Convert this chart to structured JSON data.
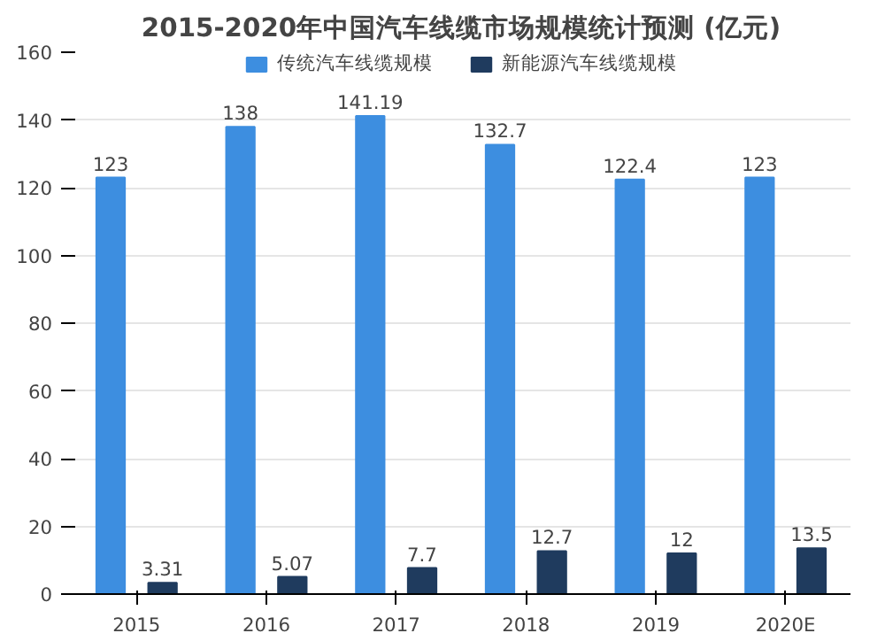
{
  "chart_data": {
    "type": "bar",
    "title": "2015-2020年中国汽车线缆市场规模统计预测 (亿元)",
    "categories": [
      "2015",
      "2016",
      "2017",
      "2018",
      "2019",
      "2020E"
    ],
    "series": [
      {
        "name": "传统汽车线缆规模",
        "color": "#3d8ee0",
        "values": [
          123,
          138,
          141.19,
          132.7,
          122.4,
          123
        ]
      },
      {
        "name": "新能源汽车线缆规模",
        "color": "#1f3b5e",
        "values": [
          3.31,
          5.07,
          7.7,
          12.7,
          12,
          13.5
        ]
      }
    ],
    "ylim": [
      0,
      160
    ],
    "yticks": [
      0,
      20,
      40,
      60,
      80,
      100,
      120,
      140,
      160
    ],
    "grid": "y",
    "legend": "top",
    "data_labels": true
  }
}
